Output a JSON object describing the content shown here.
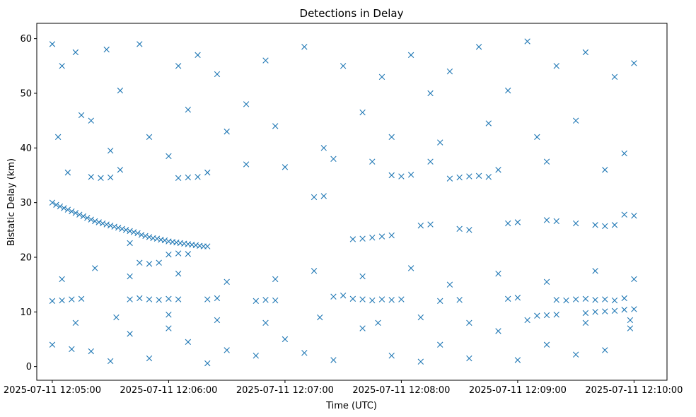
{
  "chart_data": {
    "type": "scatter",
    "title": "Detections in Delay",
    "xlabel": "Time (UTC)",
    "ylabel": "Bistatic Delay (km)",
    "date": "2025-07-11",
    "xlim": [
      "2025-07-11 12:04:52",
      "2025-07-11 12:10:17"
    ],
    "ylim": [
      -2.5,
      62.8
    ],
    "x_ticks": [
      "2025-07-11 12:05:00",
      "2025-07-11 12:06:00",
      "2025-07-11 12:07:00",
      "2025-07-11 12:08:00",
      "2025-07-11 12:09:00",
      "2025-07-11 12:10:00"
    ],
    "y_ticks": [
      0,
      10,
      20,
      30,
      40,
      50,
      60
    ],
    "marker": "x",
    "color": "#1f77b4",
    "grid": false,
    "legend": "none",
    "series": [
      {
        "points": [
          [
            "12:05:00",
            30.0
          ],
          [
            "12:05:02",
            29.6
          ],
          [
            "12:05:04",
            29.3
          ],
          [
            "12:05:06",
            29.0
          ],
          [
            "12:05:08",
            28.7
          ],
          [
            "12:05:10",
            28.4
          ],
          [
            "12:05:12",
            28.1
          ],
          [
            "12:05:14",
            27.8
          ],
          [
            "12:05:16",
            27.5
          ],
          [
            "12:05:18",
            27.2
          ],
          [
            "12:05:20",
            26.9
          ],
          [
            "12:05:22",
            26.6
          ],
          [
            "12:05:24",
            26.4
          ],
          [
            "12:05:26",
            26.2
          ],
          [
            "12:05:28",
            26.0
          ],
          [
            "12:05:30",
            25.8
          ],
          [
            "12:05:32",
            25.6
          ],
          [
            "12:05:34",
            25.4
          ],
          [
            "12:05:36",
            25.2
          ],
          [
            "12:05:38",
            25.0
          ],
          [
            "12:05:40",
            24.8
          ],
          [
            "12:05:42",
            24.6
          ],
          [
            "12:05:44",
            24.4
          ],
          [
            "12:05:46",
            24.1
          ],
          [
            "12:05:48",
            23.9
          ],
          [
            "12:05:50",
            23.7
          ],
          [
            "12:05:52",
            23.5
          ],
          [
            "12:05:54",
            23.4
          ],
          [
            "12:05:56",
            23.2
          ],
          [
            "12:05:58",
            23.1
          ],
          [
            "12:06:00",
            22.9
          ],
          [
            "12:06:02",
            22.8
          ],
          [
            "12:06:04",
            22.7
          ],
          [
            "12:06:06",
            22.6
          ],
          [
            "12:06:08",
            22.5
          ],
          [
            "12:06:10",
            22.4
          ],
          [
            "12:06:12",
            22.3
          ],
          [
            "12:06:14",
            22.2
          ],
          [
            "12:06:16",
            22.1
          ],
          [
            "12:06:18",
            22.0
          ],
          [
            "12:06:20",
            22.0
          ],
          [
            "12:05:00",
            12.0
          ],
          [
            "12:05:05",
            12.1
          ],
          [
            "12:05:10",
            12.3
          ],
          [
            "12:05:15",
            12.4
          ],
          [
            "12:05:40",
            12.3
          ],
          [
            "12:05:45",
            12.5
          ],
          [
            "12:05:50",
            12.3
          ],
          [
            "12:05:55",
            12.2
          ],
          [
            "12:06:00",
            12.4
          ],
          [
            "12:06:05",
            12.3
          ],
          [
            "12:06:20",
            12.3
          ],
          [
            "12:06:25",
            12.5
          ],
          [
            "12:06:45",
            12.0
          ],
          [
            "12:06:50",
            12.2
          ],
          [
            "12:06:55",
            12.1
          ],
          [
            "12:07:25",
            12.8
          ],
          [
            "12:07:30",
            13.0
          ],
          [
            "12:07:35",
            12.4
          ],
          [
            "12:07:40",
            12.3
          ],
          [
            "12:07:45",
            12.1
          ],
          [
            "12:07:50",
            12.3
          ],
          [
            "12:07:55",
            12.2
          ],
          [
            "12:08:00",
            12.3
          ],
          [
            "12:08:20",
            12.0
          ],
          [
            "12:08:30",
            12.2
          ],
          [
            "12:08:55",
            12.4
          ],
          [
            "12:09:00",
            12.6
          ],
          [
            "12:09:20",
            12.2
          ],
          [
            "12:09:25",
            12.1
          ],
          [
            "12:09:30",
            12.3
          ],
          [
            "12:09:35",
            12.4
          ],
          [
            "12:09:40",
            12.2
          ],
          [
            "12:09:45",
            12.3
          ],
          [
            "12:09:50",
            12.1
          ],
          [
            "12:09:55",
            12.5
          ],
          [
            "12:09:10",
            9.3
          ],
          [
            "12:09:15",
            9.4
          ],
          [
            "12:09:20",
            9.5
          ],
          [
            "12:09:35",
            9.8
          ],
          [
            "12:09:40",
            10.0
          ],
          [
            "12:09:45",
            10.1
          ],
          [
            "12:09:50",
            10.2
          ],
          [
            "12:09:55",
            10.4
          ],
          [
            "12:10:00",
            10.5
          ],
          [
            "12:05:20",
            34.7
          ],
          [
            "12:05:25",
            34.5
          ],
          [
            "12:05:30",
            34.6
          ],
          [
            "12:05:40",
            22.6
          ],
          [
            "12:05:45",
            19.0
          ],
          [
            "12:05:50",
            18.8
          ],
          [
            "12:05:55",
            19.0
          ],
          [
            "12:06:05",
            34.5
          ],
          [
            "12:06:10",
            34.6
          ],
          [
            "12:06:15",
            34.7
          ],
          [
            "12:06:00",
            20.5
          ],
          [
            "12:06:05",
            20.7
          ],
          [
            "12:06:10",
            20.6
          ],
          [
            "12:07:15",
            31.0
          ],
          [
            "12:07:20",
            31.2
          ],
          [
            "12:07:35",
            23.3
          ],
          [
            "12:07:40",
            23.4
          ],
          [
            "12:07:45",
            23.6
          ],
          [
            "12:07:50",
            23.8
          ],
          [
            "12:07:55",
            24.0
          ],
          [
            "12:07:55",
            35.0
          ],
          [
            "12:08:00",
            34.8
          ],
          [
            "12:08:05",
            35.1
          ],
          [
            "12:08:10",
            25.8
          ],
          [
            "12:08:15",
            26.0
          ],
          [
            "12:08:25",
            34.4
          ],
          [
            "12:08:30",
            34.6
          ],
          [
            "12:08:35",
            34.8
          ],
          [
            "12:08:40",
            34.9
          ],
          [
            "12:08:45",
            34.7
          ],
          [
            "12:08:30",
            25.2
          ],
          [
            "12:08:35",
            25.0
          ],
          [
            "12:08:55",
            26.2
          ],
          [
            "12:09:00",
            26.4
          ],
          [
            "12:09:15",
            26.8
          ],
          [
            "12:09:20",
            26.6
          ],
          [
            "12:09:30",
            26.2
          ],
          [
            "12:09:40",
            25.9
          ],
          [
            "12:09:45",
            25.7
          ],
          [
            "12:09:50",
            25.9
          ],
          [
            "12:09:55",
            27.8
          ],
          [
            "12:10:00",
            27.6
          ],
          [
            "12:05:00",
            59.0
          ],
          [
            "12:05:05",
            55.0
          ],
          [
            "12:05:12",
            57.5
          ],
          [
            "12:05:20",
            45.0
          ],
          [
            "12:05:28",
            58.0
          ],
          [
            "12:05:35",
            50.5
          ],
          [
            "12:05:45",
            59.0
          ],
          [
            "12:06:05",
            55.0
          ],
          [
            "12:06:15",
            57.0
          ],
          [
            "12:06:25",
            53.5
          ],
          [
            "12:06:40",
            48.0
          ],
          [
            "12:06:50",
            56.0
          ],
          [
            "12:07:10",
            58.5
          ],
          [
            "12:07:30",
            55.0
          ],
          [
            "12:07:50",
            53.0
          ],
          [
            "12:08:05",
            57.0
          ],
          [
            "12:08:15",
            50.0
          ],
          [
            "12:08:25",
            54.0
          ],
          [
            "12:08:40",
            58.5
          ],
          [
            "12:08:55",
            50.5
          ],
          [
            "12:09:05",
            59.5
          ],
          [
            "12:09:20",
            55.0
          ],
          [
            "12:09:35",
            57.5
          ],
          [
            "12:09:50",
            53.0
          ],
          [
            "12:10:00",
            55.5
          ],
          [
            "12:05:03",
            42.0
          ],
          [
            "12:05:15",
            46.0
          ],
          [
            "12:05:30",
            39.5
          ],
          [
            "12:05:50",
            42.0
          ],
          [
            "12:06:10",
            47.0
          ],
          [
            "12:06:30",
            43.0
          ],
          [
            "12:06:55",
            44.0
          ],
          [
            "12:07:20",
            40.0
          ],
          [
            "12:07:40",
            46.5
          ],
          [
            "12:07:55",
            42.0
          ],
          [
            "12:08:20",
            41.0
          ],
          [
            "12:08:45",
            44.5
          ],
          [
            "12:09:10",
            42.0
          ],
          [
            "12:09:30",
            45.0
          ],
          [
            "12:09:55",
            39.0
          ],
          [
            "12:05:08",
            35.5
          ],
          [
            "12:05:35",
            36.0
          ],
          [
            "12:06:00",
            38.5
          ],
          [
            "12:06:20",
            35.5
          ],
          [
            "12:06:40",
            37.0
          ],
          [
            "12:07:00",
            36.5
          ],
          [
            "12:07:25",
            38.0
          ],
          [
            "12:07:45",
            37.5
          ],
          [
            "12:08:15",
            37.5
          ],
          [
            "12:08:50",
            36.0
          ],
          [
            "12:09:15",
            37.5
          ],
          [
            "12:09:45",
            36.0
          ],
          [
            "12:05:05",
            16.0
          ],
          [
            "12:05:22",
            18.0
          ],
          [
            "12:05:40",
            16.5
          ],
          [
            "12:06:05",
            17.0
          ],
          [
            "12:06:30",
            15.5
          ],
          [
            "12:06:55",
            16.0
          ],
          [
            "12:07:15",
            17.5
          ],
          [
            "12:07:40",
            16.5
          ],
          [
            "12:08:05",
            18.0
          ],
          [
            "12:08:25",
            15.0
          ],
          [
            "12:08:50",
            17.0
          ],
          [
            "12:09:15",
            15.5
          ],
          [
            "12:09:40",
            17.5
          ],
          [
            "12:10:00",
            16.0
          ],
          [
            "12:05:00",
            4.0
          ],
          [
            "12:05:10",
            3.2
          ],
          [
            "12:05:20",
            2.8
          ],
          [
            "12:05:30",
            1.0
          ],
          [
            "12:05:40",
            6.0
          ],
          [
            "12:05:50",
            1.5
          ],
          [
            "12:06:00",
            7.0
          ],
          [
            "12:06:10",
            4.5
          ],
          [
            "12:06:20",
            0.6
          ],
          [
            "12:06:30",
            3.0
          ],
          [
            "12:06:45",
            2.0
          ],
          [
            "12:07:00",
            5.0
          ],
          [
            "12:07:10",
            2.5
          ],
          [
            "12:07:25",
            1.2
          ],
          [
            "12:07:40",
            7.0
          ],
          [
            "12:07:55",
            2.0
          ],
          [
            "12:08:10",
            0.9
          ],
          [
            "12:08:20",
            4.0
          ],
          [
            "12:08:35",
            1.5
          ],
          [
            "12:08:50",
            6.5
          ],
          [
            "12:09:00",
            1.2
          ],
          [
            "12:09:15",
            4.0
          ],
          [
            "12:09:30",
            2.2
          ],
          [
            "12:09:45",
            3.0
          ],
          [
            "12:09:58",
            7.0
          ],
          [
            "12:05:12",
            8.0
          ],
          [
            "12:05:33",
            9.0
          ],
          [
            "12:06:00",
            9.5
          ],
          [
            "12:06:25",
            8.5
          ],
          [
            "12:06:50",
            8.0
          ],
          [
            "12:07:18",
            9.0
          ],
          [
            "12:07:48",
            8.0
          ],
          [
            "12:08:10",
            9.0
          ],
          [
            "12:08:35",
            8.0
          ],
          [
            "12:09:05",
            8.5
          ],
          [
            "12:09:35",
            8.0
          ],
          [
            "12:09:58",
            8.5
          ]
        ]
      }
    ]
  }
}
